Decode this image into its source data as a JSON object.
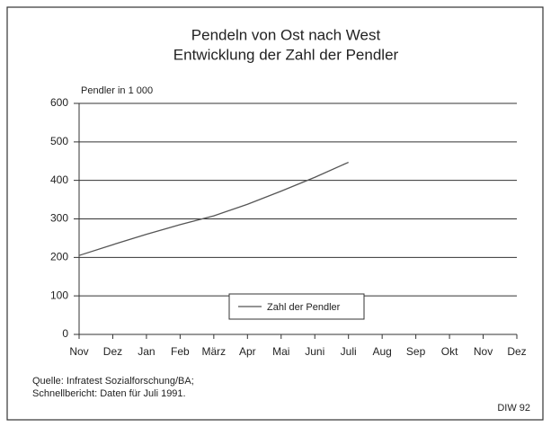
{
  "chart_data": {
    "type": "line",
    "title": [
      "Pendeln von Ost nach West",
      "Entwicklung der Zahl der Pendler"
    ],
    "y_axis_label": "Pendler in 1 000",
    "categories": [
      "Nov",
      "Dez",
      "Jan",
      "Feb",
      "März",
      "Apr",
      "Mai",
      "Juni",
      "Juli",
      "Aug",
      "Sep",
      "Okt",
      "Nov",
      "Dez"
    ],
    "series": [
      {
        "name": "Zahl der Pendler",
        "color": "#555555",
        "values": [
          205,
          233,
          260,
          285,
          308,
          338,
          372,
          408,
          447,
          null,
          null,
          null,
          null,
          null
        ]
      }
    ],
    "ylim": [
      0,
      600
    ],
    "yticks": [
      0,
      100,
      200,
      300,
      400,
      500,
      600
    ],
    "grid": true,
    "legend": "bottom",
    "source": [
      "Quelle: Infratest Sozialforschung/BA;",
      "Schnellbericht: Daten für Juli 1991."
    ],
    "credit": "DIW 92"
  }
}
